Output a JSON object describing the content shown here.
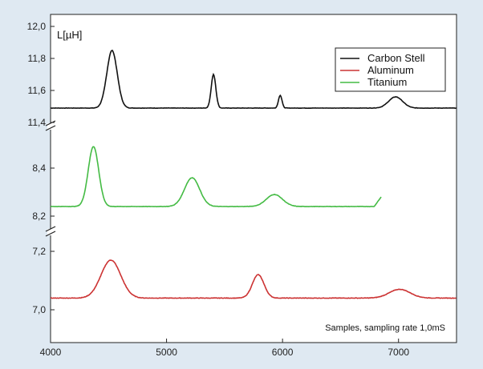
{
  "chart_data": {
    "type": "line",
    "ylabel": "L[µH]",
    "xlabel": "Samples, sampling rate 1,0mS",
    "xlim": [
      4000,
      7500
    ],
    "x_ticks": [
      "4000",
      "5000",
      "6000",
      "7000"
    ],
    "legend_position": "top-right",
    "grid": false,
    "segments": [
      {
        "name": "upper",
        "ylim": [
          11.4,
          12.0
        ],
        "ticks": [
          "11,4",
          "11,6",
          "11,8",
          "12,0"
        ]
      },
      {
        "name": "middle",
        "ylim": [
          8.1,
          8.5
        ],
        "ticks": [
          "8,2",
          "8,4"
        ]
      },
      {
        "name": "lower",
        "ylim": [
          6.9,
          7.3
        ],
        "ticks": [
          "7,0",
          "7,2"
        ]
      }
    ],
    "series": [
      {
        "name": "Carbon Stell",
        "color": "#111111",
        "segment": "upper",
        "x_range": [
          4000,
          7500
        ],
        "baseline": 11.49,
        "peaks": [
          {
            "x": 4530,
            "y": 11.85,
            "w": 45
          },
          {
            "x": 5405,
            "y": 11.7,
            "w": 20
          },
          {
            "x": 5980,
            "y": 11.57,
            "w": 15
          },
          {
            "x": 6975,
            "y": 11.56,
            "w": 60
          }
        ]
      },
      {
        "name": "Aluminum",
        "color": "#cc3333",
        "segment": "lower",
        "x_range": [
          4000,
          7500
        ],
        "baseline": 7.04,
        "peaks": [
          {
            "x": 4520,
            "y": 7.17,
            "w": 85
          },
          {
            "x": 5790,
            "y": 7.12,
            "w": 50
          },
          {
            "x": 7010,
            "y": 7.07,
            "w": 90
          }
        ]
      },
      {
        "name": "Titanium",
        "color": "#44bb44",
        "segment": "middle",
        "x_range": [
          4000,
          6850
        ],
        "baseline": 8.24,
        "peaks": [
          {
            "x": 4370,
            "y": 8.49,
            "w": 45
          },
          {
            "x": 5220,
            "y": 8.36,
            "w": 65
          },
          {
            "x": 5930,
            "y": 8.29,
            "w": 70
          }
        ],
        "end_rise": 8.28
      }
    ]
  }
}
